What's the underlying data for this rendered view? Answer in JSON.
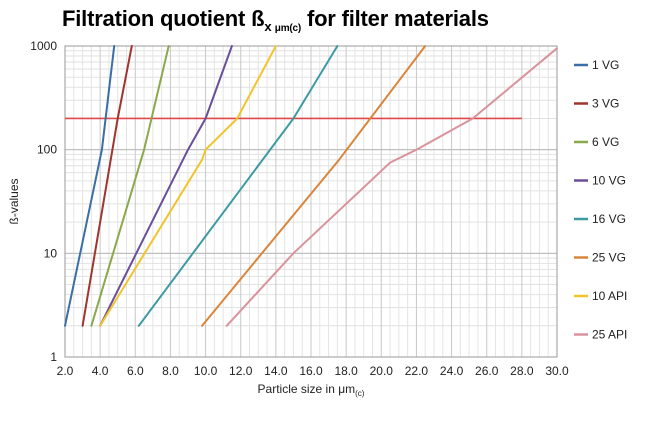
{
  "chart_data": {
    "type": "line",
    "title": "Filtration quotient ß",
    "title_subscript": "x",
    "title_subscript_unit": "μm(c)",
    "title_suffix": "for filter materials",
    "xlabel": "Particle size in μm",
    "xlabel_subscript": "(c)",
    "ylabel": "ß-values",
    "xlim": [
      2.0,
      30.0
    ],
    "ylim": [
      1,
      1000
    ],
    "yscale": "log",
    "x_ticks": [
      2.0,
      4.0,
      6.0,
      8.0,
      10.0,
      12.0,
      14.0,
      16.0,
      18.0,
      20.0,
      22.0,
      24.0,
      26.0,
      28.0,
      30.0
    ],
    "x_tick_labels": [
      "2.0",
      "4.0",
      "6.0",
      "8.0",
      "10.0",
      "12.0",
      "14.0",
      "16.0",
      "18.0",
      "20.0",
      "22.0",
      "24.0",
      "26.0",
      "28.0",
      "30.0"
    ],
    "y_ticks": [
      1,
      10,
      100,
      1000
    ],
    "y_tick_labels": [
      "1",
      "10",
      "100",
      "1000"
    ],
    "grid": true,
    "legend_position": "right",
    "reference_line": {
      "y": 200,
      "x_range": [
        2.0,
        28.0
      ],
      "color": "#e0474c"
    },
    "series": [
      {
        "name": "1 VG",
        "color": "#3a6ea5",
        "points": [
          [
            2.0,
            2
          ],
          [
            4.1,
            100
          ],
          [
            4.8,
            1000
          ]
        ]
      },
      {
        "name": "3 VG",
        "color": "#a0342e",
        "points": [
          [
            3.0,
            2
          ],
          [
            5.0,
            200
          ],
          [
            5.8,
            1000
          ]
        ]
      },
      {
        "name": "6 VG",
        "color": "#8aa84c",
        "points": [
          [
            3.5,
            2
          ],
          [
            6.5,
            100
          ],
          [
            7.9,
            1000
          ]
        ]
      },
      {
        "name": "10 VG",
        "color": "#6a4e9a",
        "points": [
          [
            4.0,
            2
          ],
          [
            9.0,
            100
          ],
          [
            10.0,
            200
          ],
          [
            11.5,
            1000
          ]
        ]
      },
      {
        "name": "16 VG",
        "color": "#3d9aa3",
        "points": [
          [
            6.2,
            2
          ],
          [
            15.0,
            200
          ],
          [
            17.5,
            1000
          ]
        ]
      },
      {
        "name": "25 VG",
        "color": "#d9853b",
        "points": [
          [
            9.8,
            2
          ],
          [
            17.6,
            80
          ],
          [
            22.5,
            1000
          ]
        ]
      },
      {
        "name": "10 API",
        "color": "#f2c42c",
        "points": [
          [
            4.0,
            2
          ],
          [
            9.8,
            80
          ],
          [
            10.0,
            100
          ],
          [
            11.8,
            200
          ],
          [
            14.0,
            1000
          ]
        ]
      },
      {
        "name": "25 API",
        "color": "#d8939c",
        "points": [
          [
            11.2,
            2
          ],
          [
            15.0,
            10
          ],
          [
            20.5,
            75
          ],
          [
            22.0,
            100
          ],
          [
            25.2,
            200
          ],
          [
            30.0,
            950
          ]
        ]
      }
    ]
  }
}
